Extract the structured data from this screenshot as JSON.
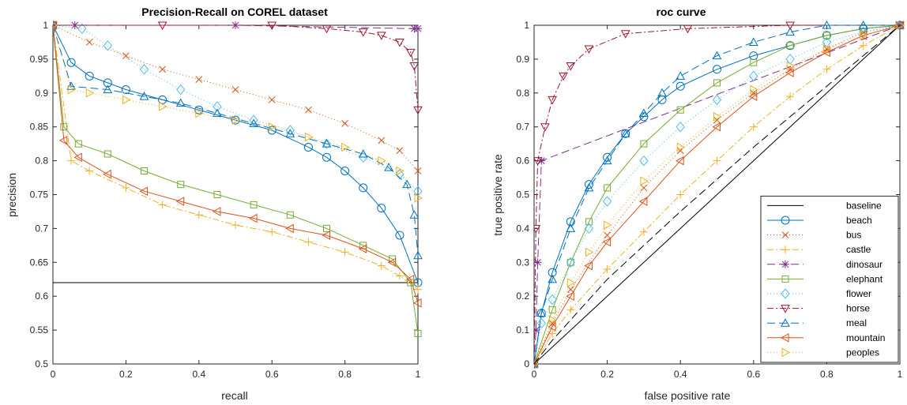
{
  "chart_data": [
    {
      "type": "line",
      "title": "Precision-Recall on COREL dataset",
      "xlabel": "recall",
      "ylabel": "precision",
      "xlim": [
        0,
        1
      ],
      "ylim": [
        0.5,
        1
      ],
      "xticks": [
        0,
        0.2,
        0.4,
        0.6,
        0.8,
        1
      ],
      "xtick_labels": [
        "0",
        "0.2",
        "0.4",
        "0.6",
        "0.8",
        "1"
      ],
      "yticks": [
        0.5,
        0.55,
        0.6,
        0.65,
        0.7,
        0.75,
        0.8,
        0.85,
        0.9,
        0.95,
        1
      ],
      "ytick_labels": [
        "0.5",
        "0.55",
        "0.6",
        "0.65",
        "0.7",
        "0.75",
        "0.8",
        "0.85",
        "0.9",
        "0.95",
        "1"
      ],
      "grid": false,
      "legend": false,
      "series": [
        {
          "name": "baseline",
          "color": "#000000",
          "dash": "",
          "marker": "none",
          "x": [
            0,
            1
          ],
          "y": [
            0.62,
            0.62
          ]
        },
        {
          "name": "beach",
          "color": "#0072BD",
          "dash": "",
          "marker": "circle",
          "x": [
            0,
            0.05,
            0.1,
            0.15,
            0.2,
            0.3,
            0.4,
            0.5,
            0.6,
            0.7,
            0.75,
            0.8,
            0.85,
            0.9,
            0.95,
            1.0
          ],
          "y": [
            1.0,
            0.945,
            0.925,
            0.915,
            0.905,
            0.89,
            0.875,
            0.86,
            0.845,
            0.82,
            0.805,
            0.785,
            0.76,
            0.73,
            0.69,
            0.62
          ]
        },
        {
          "name": "bus",
          "color": "#D95319",
          "dash": "1 3",
          "marker": "x",
          "x": [
            0,
            0.1,
            0.2,
            0.3,
            0.4,
            0.5,
            0.6,
            0.7,
            0.8,
            0.9,
            0.95,
            1.0
          ],
          "y": [
            1.0,
            0.975,
            0.955,
            0.935,
            0.92,
            0.905,
            0.89,
            0.875,
            0.855,
            0.83,
            0.815,
            0.785
          ]
        },
        {
          "name": "castle",
          "color": "#EDB120",
          "dash": "8 3 2 3",
          "marker": "plus",
          "x": [
            0,
            0.05,
            0.1,
            0.2,
            0.3,
            0.4,
            0.5,
            0.6,
            0.7,
            0.8,
            0.9,
            0.95,
            1.0
          ],
          "y": [
            1.0,
            0.8,
            0.785,
            0.76,
            0.735,
            0.72,
            0.705,
            0.695,
            0.68,
            0.665,
            0.645,
            0.63,
            0.61
          ]
        },
        {
          "name": "dinosaur",
          "color": "#7E2F8E",
          "dash": "10 5",
          "marker": "asterisk",
          "x": [
            0,
            0.06,
            0.5,
            0.99,
            1.0
          ],
          "y": [
            1.0,
            1.0,
            1.0,
            0.995,
            0.995
          ]
        },
        {
          "name": "elephant",
          "color": "#77AC30",
          "dash": "",
          "marker": "square",
          "x": [
            0,
            0.03,
            0.07,
            0.15,
            0.25,
            0.35,
            0.45,
            0.55,
            0.65,
            0.75,
            0.85,
            0.93,
            0.98,
            1.0
          ],
          "y": [
            1.0,
            0.85,
            0.825,
            0.81,
            0.785,
            0.765,
            0.75,
            0.735,
            0.72,
            0.7,
            0.675,
            0.655,
            0.62,
            0.545
          ]
        },
        {
          "name": "flower",
          "color": "#4DBEEE",
          "dash": "1 3",
          "marker": "diamond",
          "x": [
            0,
            0.08,
            0.15,
            0.25,
            0.35,
            0.45,
            0.55,
            0.65,
            0.75,
            0.85,
            0.95,
            1.0
          ],
          "y": [
            1.0,
            0.995,
            0.97,
            0.935,
            0.905,
            0.88,
            0.86,
            0.845,
            0.825,
            0.805,
            0.78,
            0.755
          ]
        },
        {
          "name": "horse",
          "color": "#A2142F",
          "dash": "8 3 2 3",
          "marker": "triangle-down",
          "x": [
            0,
            0.3,
            0.6,
            0.75,
            0.85,
            0.9,
            0.95,
            0.98,
            0.99,
            1.0
          ],
          "y": [
            1.0,
            1.0,
            1.0,
            0.995,
            0.99,
            0.985,
            0.975,
            0.96,
            0.94,
            0.875
          ]
        },
        {
          "name": "meal",
          "color": "#0072BD",
          "dash": "10 5",
          "marker": "triangle-up",
          "x": [
            0,
            0.05,
            0.15,
            0.25,
            0.35,
            0.45,
            0.55,
            0.65,
            0.75,
            0.85,
            0.92,
            0.97,
            0.99,
            1.0
          ],
          "y": [
            1.0,
            0.91,
            0.905,
            0.895,
            0.885,
            0.87,
            0.855,
            0.84,
            0.825,
            0.81,
            0.79,
            0.765,
            0.72,
            0.66
          ]
        },
        {
          "name": "mountain",
          "color": "#D95319",
          "dash": "",
          "marker": "triangle-left",
          "x": [
            0,
            0.03,
            0.07,
            0.15,
            0.25,
            0.35,
            0.45,
            0.55,
            0.65,
            0.75,
            0.85,
            0.93,
            0.98,
            1.0
          ],
          "y": [
            1.0,
            0.83,
            0.805,
            0.78,
            0.755,
            0.74,
            0.725,
            0.715,
            0.7,
            0.69,
            0.67,
            0.65,
            0.625,
            0.59
          ]
        },
        {
          "name": "peoples",
          "color": "#EDB120",
          "dash": "1 3",
          "marker": "triangle-right",
          "x": [
            0,
            0.05,
            0.1,
            0.2,
            0.3,
            0.4,
            0.5,
            0.6,
            0.7,
            0.8,
            0.9,
            0.95,
            1.0
          ],
          "y": [
            1.0,
            0.905,
            0.9,
            0.89,
            0.88,
            0.87,
            0.86,
            0.85,
            0.835,
            0.82,
            0.8,
            0.785,
            0.745
          ]
        }
      ]
    },
    {
      "type": "line",
      "title": "roc curve",
      "xlabel": "false positive rate",
      "ylabel": "true positive rate",
      "xlim": [
        0,
        1
      ],
      "ylim": [
        0,
        1
      ],
      "xticks": [
        0,
        0.2,
        0.4,
        0.6,
        0.8,
        1
      ],
      "xtick_labels": [
        "0",
        "0.2",
        "0.4",
        "0.6",
        "0.8",
        "1"
      ],
      "yticks": [
        0,
        0.1,
        0.2,
        0.3,
        0.4,
        0.5,
        0.6,
        0.7,
        0.8,
        0.9,
        1
      ],
      "ytick_labels": [
        "0",
        "0.1",
        "0.2",
        "0.3",
        "0.4",
        "0.5",
        "0.6",
        "0.7",
        "0.8",
        "0.9",
        "1"
      ],
      "grid": false,
      "legend": true,
      "legend_position": "bottom-right",
      "series": [
        {
          "name": "baseline",
          "color": "#000000",
          "dash": "",
          "marker": "none",
          "x": [
            0,
            1
          ],
          "y": [
            0,
            1
          ]
        },
        {
          "name": "beach",
          "color": "#0072BD",
          "dash": "",
          "marker": "circle",
          "x": [
            0,
            0.02,
            0.05,
            0.1,
            0.15,
            0.2,
            0.25,
            0.3,
            0.35,
            0.4,
            0.5,
            0.6,
            0.7,
            0.8,
            0.9,
            1.0
          ],
          "y": [
            0,
            0.15,
            0.27,
            0.42,
            0.53,
            0.61,
            0.68,
            0.73,
            0.78,
            0.82,
            0.87,
            0.91,
            0.94,
            0.97,
            0.99,
            1.0
          ]
        },
        {
          "name": "bus",
          "color": "#D95319",
          "dash": "1 3",
          "marker": "x",
          "x": [
            0,
            0.05,
            0.1,
            0.2,
            0.3,
            0.4,
            0.5,
            0.6,
            0.7,
            0.8,
            0.9,
            1.0
          ],
          "y": [
            0,
            0.12,
            0.22,
            0.38,
            0.52,
            0.63,
            0.72,
            0.8,
            0.87,
            0.93,
            0.98,
            1.0
          ]
        },
        {
          "name": "castle",
          "color": "#EDB120",
          "dash": "8 3 2 3",
          "marker": "plus",
          "x": [
            0,
            0.05,
            0.1,
            0.2,
            0.3,
            0.4,
            0.5,
            0.6,
            0.7,
            0.8,
            0.9,
            1.0
          ],
          "y": [
            0,
            0.09,
            0.16,
            0.28,
            0.39,
            0.5,
            0.6,
            0.7,
            0.79,
            0.87,
            0.94,
            1.0
          ]
        },
        {
          "name": "dinosaur",
          "color": "#7E2F8E",
          "dash": "10 5",
          "marker": "asterisk",
          "x": [
            0,
            0.005,
            0.01,
            0.02,
            1.0
          ],
          "y": [
            0,
            0.1,
            0.3,
            0.6,
            1.0
          ]
        },
        {
          "name": "elephant",
          "color": "#77AC30",
          "dash": "",
          "marker": "square",
          "x": [
            0,
            0.05,
            0.1,
            0.15,
            0.2,
            0.3,
            0.4,
            0.5,
            0.6,
            0.7,
            0.8,
            0.9,
            1.0
          ],
          "y": [
            0,
            0.16,
            0.3,
            0.42,
            0.52,
            0.65,
            0.75,
            0.83,
            0.89,
            0.94,
            0.97,
            0.99,
            1.0
          ]
        },
        {
          "name": "flower",
          "color": "#4DBEEE",
          "dash": "1 3",
          "marker": "diamond",
          "x": [
            0,
            0.02,
            0.05,
            0.1,
            0.15,
            0.2,
            0.3,
            0.4,
            0.5,
            0.6,
            0.7,
            0.8,
            0.9,
            1.0
          ],
          "y": [
            0,
            0.12,
            0.19,
            0.3,
            0.4,
            0.48,
            0.6,
            0.7,
            0.78,
            0.85,
            0.9,
            0.95,
            0.98,
            1.0
          ]
        },
        {
          "name": "horse",
          "color": "#A2142F",
          "dash": "8 3 2 3",
          "marker": "triangle-down",
          "x": [
            0,
            0.005,
            0.01,
            0.03,
            0.05,
            0.08,
            0.1,
            0.15,
            0.25,
            0.42,
            0.7,
            1.0
          ],
          "y": [
            0,
            0.4,
            0.6,
            0.7,
            0.78,
            0.85,
            0.88,
            0.93,
            0.975,
            0.99,
            1.0,
            1.0
          ]
        },
        {
          "name": "meal",
          "color": "#0072BD",
          "dash": "10 5",
          "marker": "triangle-up",
          "x": [
            0,
            0.02,
            0.05,
            0.1,
            0.15,
            0.2,
            0.25,
            0.3,
            0.35,
            0.4,
            0.5,
            0.6,
            0.7,
            0.8,
            0.9,
            1.0
          ],
          "y": [
            0,
            0.15,
            0.25,
            0.4,
            0.52,
            0.6,
            0.68,
            0.74,
            0.8,
            0.85,
            0.91,
            0.95,
            0.98,
            1.0,
            1.0,
            1.0
          ]
        },
        {
          "name": "mountain",
          "color": "#D95319",
          "dash": "",
          "marker": "triangle-left",
          "x": [
            0,
            0.05,
            0.1,
            0.15,
            0.2,
            0.3,
            0.4,
            0.5,
            0.6,
            0.7,
            0.8,
            0.9,
            1.0
          ],
          "y": [
            0,
            0.11,
            0.2,
            0.29,
            0.36,
            0.48,
            0.6,
            0.7,
            0.79,
            0.86,
            0.92,
            0.97,
            1.0
          ]
        },
        {
          "name": "peoples",
          "color": "#EDB120",
          "dash": "1 3",
          "marker": "triangle-right",
          "x": [
            0,
            0.05,
            0.1,
            0.15,
            0.2,
            0.3,
            0.4,
            0.5,
            0.6,
            0.7,
            0.8,
            0.9,
            1.0
          ],
          "y": [
            0,
            0.13,
            0.24,
            0.33,
            0.41,
            0.54,
            0.64,
            0.73,
            0.81,
            0.88,
            0.93,
            0.97,
            1.0
          ]
        },
        {
          "name": "",
          "color": "#000000",
          "dash": "10 5",
          "marker": "none",
          "x": [
            0,
            0.05,
            0.2,
            0.4,
            0.6,
            0.8,
            1.0
          ],
          "y": [
            0,
            0.07,
            0.25,
            0.45,
            0.64,
            0.82,
            1.0
          ]
        }
      ]
    }
  ]
}
